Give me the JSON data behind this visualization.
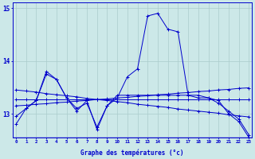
{
  "title": "Graphe des températures (°c)",
  "background_color": "#cce8e8",
  "grid_color": "#aacccc",
  "line_color": "#0000cc",
  "x_hours": [
    0,
    1,
    2,
    3,
    4,
    5,
    6,
    7,
    8,
    9,
    10,
    11,
    12,
    13,
    14,
    15,
    16,
    17,
    18,
    19,
    20,
    21,
    22,
    23
  ],
  "series": [
    [
      12.8,
      13.1,
      13.25,
      13.8,
      13.65,
      13.3,
      13.1,
      13.2,
      12.75,
      13.15,
      13.3,
      13.7,
      13.85,
      14.85,
      14.9,
      14.6,
      14.55,
      13.35,
      13.3,
      13.3,
      13.25,
      13.0,
      12.85,
      12.55
    ],
    [
      12.95,
      13.1,
      13.25,
      13.75,
      13.65,
      13.3,
      13.05,
      13.25,
      12.7,
      13.15,
      13.35,
      13.35,
      13.35,
      13.35,
      13.35,
      13.35,
      13.35,
      13.35,
      13.35,
      13.3,
      13.2,
      13.05,
      12.9,
      12.6
    ],
    [
      13.27,
      13.27,
      13.27,
      13.27,
      13.27,
      13.27,
      13.27,
      13.27,
      13.27,
      13.27,
      13.27,
      13.27,
      13.27,
      13.27,
      13.27,
      13.27,
      13.27,
      13.27,
      13.27,
      13.27,
      13.27,
      13.27,
      13.27,
      13.27
    ],
    [
      13.45,
      13.43,
      13.41,
      13.38,
      13.36,
      13.34,
      13.32,
      13.29,
      13.27,
      13.25,
      13.23,
      13.21,
      13.18,
      13.16,
      13.14,
      13.12,
      13.09,
      13.07,
      13.05,
      13.03,
      13.01,
      12.98,
      12.96,
      12.94
    ],
    [
      13.15,
      13.16,
      13.18,
      13.19,
      13.21,
      13.22,
      13.24,
      13.25,
      13.27,
      13.28,
      13.3,
      13.31,
      13.33,
      13.34,
      13.36,
      13.37,
      13.39,
      13.4,
      13.42,
      13.43,
      13.45,
      13.46,
      13.48,
      13.49
    ]
  ],
  "ylim": [
    12.55,
    15.1
  ],
  "yticks": [
    13,
    14,
    15
  ],
  "xlim": [
    -0.3,
    23.3
  ],
  "figsize": [
    3.2,
    2.0
  ],
  "dpi": 100
}
